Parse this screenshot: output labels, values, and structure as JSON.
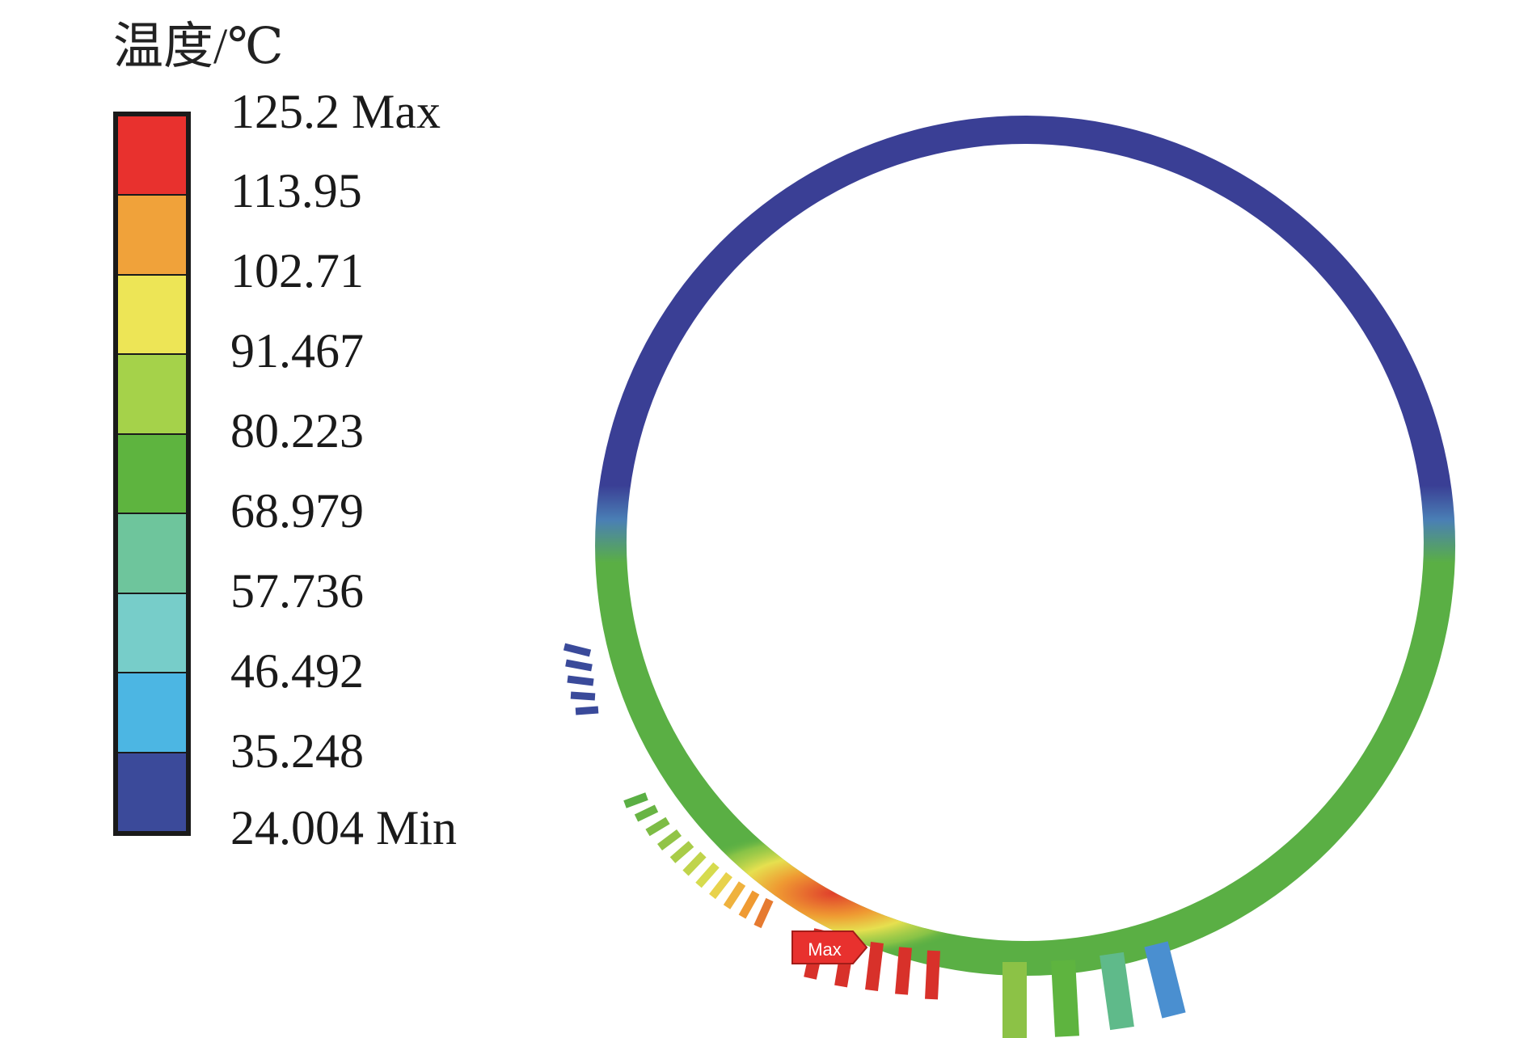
{
  "legend": {
    "title": "温度/℃",
    "labels": [
      "125.2 Max",
      "113.95",
      "102.71",
      "91.467",
      "80.223",
      "68.979",
      "57.736",
      "46.492",
      "35.248",
      "24.004 Min"
    ],
    "colors": [
      "#e8312e",
      "#f0a23a",
      "#ede556",
      "#a5d24a",
      "#5eb43f",
      "#6ec59c",
      "#77cdc9",
      "#4cb6e3",
      "#3b4a9a"
    ]
  },
  "plot": {
    "max_marker_label": "Max",
    "ring_color_cold": "#3a3f95",
    "ring_color_warm": "#5aaf44",
    "hot_color": "#d83a2c"
  }
}
